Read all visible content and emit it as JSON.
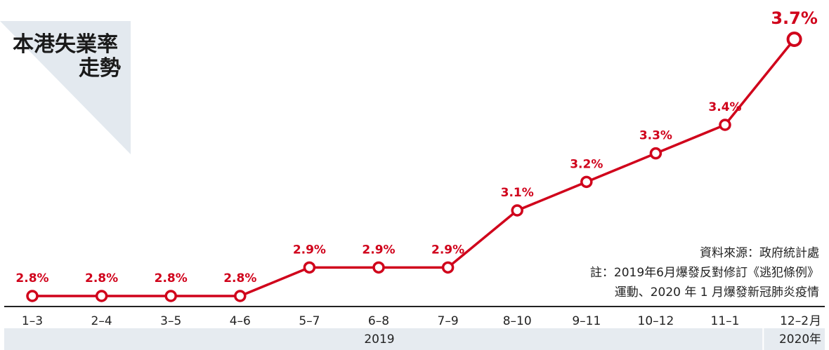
{
  "title": {
    "line1": "本港失業率",
    "line2": "走勢"
  },
  "source": {
    "line1": "資料來源：政府統計處",
    "line2": "註：2019年6月爆發反對修訂《逃犯條例》",
    "line3": "運動、2020 年 1 月爆發新冠肺炎疫情"
  },
  "colors": {
    "line": "#d0021b",
    "label": "#d0021b",
    "axis": "#222222",
    "panel": "#e6ebf0"
  },
  "chart_data": {
    "type": "line",
    "categories": [
      "1–3",
      "2–4",
      "3–5",
      "4–6",
      "5–7",
      "6–8",
      "7–9",
      "8–10",
      "9–11",
      "10–12",
      "11–1",
      "12–2"
    ],
    "values": [
      2.8,
      2.8,
      2.8,
      2.8,
      2.9,
      2.9,
      2.9,
      3.1,
      3.2,
      3.3,
      3.4,
      3.7
    ],
    "data_labels": [
      "2.8%",
      "2.8%",
      "2.8%",
      "2.8%",
      "2.9%",
      "2.9%",
      "2.9%",
      "3.1%",
      "3.2%",
      "3.3%",
      "3.4%",
      "3.7%"
    ],
    "x_unit": "月",
    "year_labels": [
      {
        "text": "2019",
        "span": [
          0,
          10
        ]
      },
      {
        "text": "2020",
        "span": [
          11,
          11
        ]
      }
    ],
    "year_unit": "年",
    "ylim": [
      2.8,
      3.7
    ],
    "grid": false,
    "legend": "none"
  }
}
